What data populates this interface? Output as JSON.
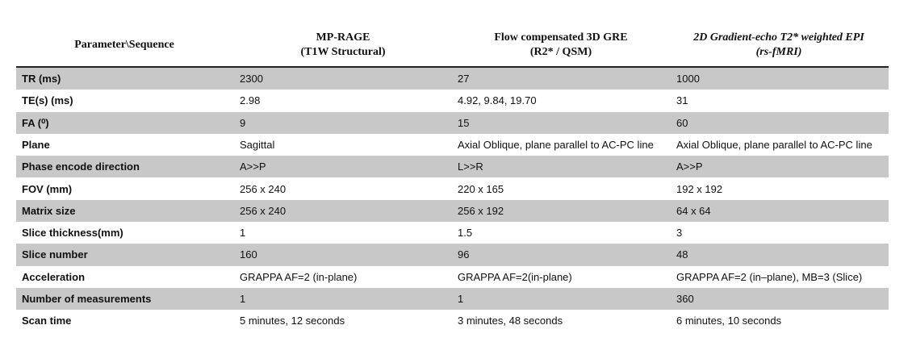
{
  "table": {
    "header": [
      [
        "Parameter\\Sequence"
      ],
      [
        "MP-RAGE",
        "(T1W Structural)"
      ],
      [
        "Flow compensated 3D GRE",
        "(R2* / QSM)"
      ],
      [
        "2D Gradient-echo T2* weighted EPI",
        "(rs-fMRI)"
      ]
    ],
    "rows": [
      [
        "TR (ms)",
        "2300",
        "27",
        "1000"
      ],
      [
        "TE(s) (ms)",
        "2.98",
        "4.92, 9.84, 19.70",
        "31"
      ],
      [
        "FA (⁰)",
        "9",
        "15",
        "60"
      ],
      [
        "Plane",
        "Sagittal",
        "Axial Oblique, plane parallel to AC-PC line",
        "Axial Oblique, plane parallel to AC-PC line"
      ],
      [
        "Phase encode direction",
        "A>>P",
        "L>>R",
        "A>>P"
      ],
      [
        "FOV (mm)",
        "256 x 240",
        "220 x 165",
        "192 x 192"
      ],
      [
        "Matrix size",
        "256 x 240",
        "256 x 192",
        "64 x 64"
      ],
      [
        "Slice thickness(mm)",
        "1",
        "1.5",
        "3"
      ],
      [
        "Slice number",
        "160",
        "96",
        "48"
      ],
      [
        "Acceleration",
        "GRAPPA AF=2 (in-plane)",
        "GRAPPA AF=2(in-plane)",
        "GRAPPA AF=2 (in–plane), MB=3 (Slice)"
      ],
      [
        "Number of measurements",
        "1",
        "1",
        "360"
      ],
      [
        "Scan time",
        "5 minutes, 12 seconds",
        "3 minutes, 48 seconds",
        "6 minutes, 10 seconds"
      ]
    ]
  }
}
